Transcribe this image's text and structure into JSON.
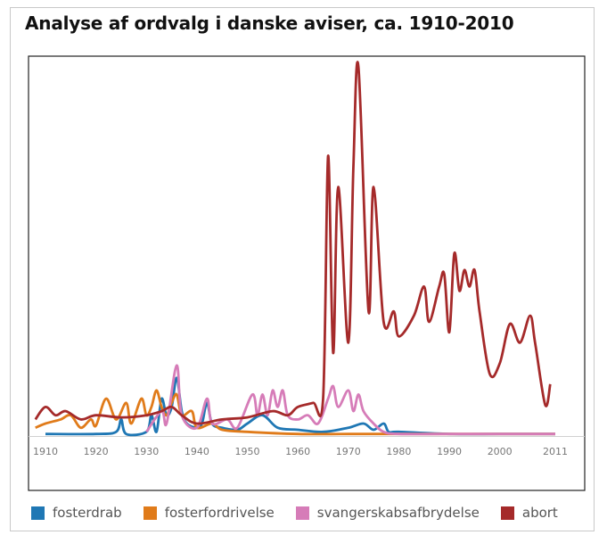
{
  "title": "Analyse af ordvalg i danske aviser, ca. 1910-2010",
  "chart_data": {
    "type": "line",
    "title": "Analyse af ordvalg i danske aviser, ca. 1910-2010",
    "xlabel": "",
    "ylabel": "",
    "x_ticks": [
      1910,
      1920,
      1930,
      1940,
      1950,
      1960,
      1970,
      1980,
      1990,
      2000,
      2011
    ],
    "xlim": [
      1910,
      2011
    ],
    "legend_position": "bottom",
    "grid": false,
    "series": [
      {
        "name": "fosterdrab",
        "color": "#1f77b4",
        "points": [
          [
            1910,
            1
          ],
          [
            1920,
            1
          ],
          [
            1924,
            2
          ],
          [
            1925,
            8
          ],
          [
            1926,
            1
          ],
          [
            1930,
            2
          ],
          [
            1931,
            10
          ],
          [
            1932,
            2
          ],
          [
            1933,
            18
          ],
          [
            1934,
            10
          ],
          [
            1935,
            14
          ],
          [
            1936,
            28
          ],
          [
            1937,
            12
          ],
          [
            1938,
            6
          ],
          [
            1940,
            4
          ],
          [
            1941,
            6
          ],
          [
            1942,
            16
          ],
          [
            1943,
            6
          ],
          [
            1945,
            4
          ],
          [
            1948,
            3
          ],
          [
            1950,
            6
          ],
          [
            1953,
            10
          ],
          [
            1956,
            4
          ],
          [
            1960,
            3
          ],
          [
            1965,
            2
          ],
          [
            1970,
            4
          ],
          [
            1973,
            6
          ],
          [
            1975,
            3
          ],
          [
            1977,
            6
          ],
          [
            1978,
            2
          ],
          [
            1980,
            2
          ],
          [
            1990,
            1
          ],
          [
            2000,
            1
          ],
          [
            2011,
            1
          ]
        ]
      },
      {
        "name": "fosterfordrivelse",
        "color": "#e07b1a",
        "points": [
          [
            1908,
            4
          ],
          [
            1910,
            6
          ],
          [
            1913,
            8
          ],
          [
            1915,
            10
          ],
          [
            1917,
            4
          ],
          [
            1919,
            8
          ],
          [
            1920,
            5
          ],
          [
            1922,
            18
          ],
          [
            1924,
            8
          ],
          [
            1926,
            16
          ],
          [
            1927,
            6
          ],
          [
            1929,
            18
          ],
          [
            1930,
            10
          ],
          [
            1931,
            14
          ],
          [
            1932,
            22
          ],
          [
            1933,
            14
          ],
          [
            1934,
            10
          ],
          [
            1935,
            16
          ],
          [
            1936,
            20
          ],
          [
            1937,
            10
          ],
          [
            1939,
            12
          ],
          [
            1940,
            4
          ],
          [
            1943,
            6
          ],
          [
            1945,
            3
          ],
          [
            1950,
            2
          ],
          [
            1960,
            1
          ],
          [
            1970,
            1
          ],
          [
            1980,
            1
          ],
          [
            2011,
            1
          ]
        ]
      },
      {
        "name": "svangerskabsafbrydelse",
        "color": "#d67cb8",
        "points": [
          [
            1930,
            2
          ],
          [
            1933,
            12
          ],
          [
            1934,
            6
          ],
          [
            1936,
            34
          ],
          [
            1937,
            10
          ],
          [
            1940,
            4
          ],
          [
            1942,
            18
          ],
          [
            1943,
            6
          ],
          [
            1946,
            8
          ],
          [
            1948,
            4
          ],
          [
            1951,
            20
          ],
          [
            1952,
            10
          ],
          [
            1953,
            20
          ],
          [
            1954,
            10
          ],
          [
            1955,
            22
          ],
          [
            1956,
            14
          ],
          [
            1957,
            22
          ],
          [
            1958,
            10
          ],
          [
            1960,
            8
          ],
          [
            1962,
            10
          ],
          [
            1964,
            6
          ],
          [
            1966,
            18
          ],
          [
            1967,
            24
          ],
          [
            1968,
            14
          ],
          [
            1970,
            22
          ],
          [
            1971,
            12
          ],
          [
            1972,
            20
          ],
          [
            1973,
            12
          ],
          [
            1975,
            6
          ],
          [
            1977,
            2
          ],
          [
            1980,
            1
          ],
          [
            1990,
            1
          ],
          [
            2000,
            1
          ],
          [
            2011,
            1
          ]
        ]
      },
      {
        "name": "abort",
        "color": "#a52a2a",
        "points": [
          [
            1908,
            8
          ],
          [
            1910,
            14
          ],
          [
            1912,
            10
          ],
          [
            1914,
            12
          ],
          [
            1917,
            8
          ],
          [
            1920,
            10
          ],
          [
            1925,
            9
          ],
          [
            1930,
            10
          ],
          [
            1933,
            12
          ],
          [
            1935,
            14
          ],
          [
            1937,
            10
          ],
          [
            1940,
            6
          ],
          [
            1945,
            8
          ],
          [
            1950,
            9
          ],
          [
            1955,
            12
          ],
          [
            1958,
            10
          ],
          [
            1960,
            14
          ],
          [
            1963,
            16
          ],
          [
            1965,
            18
          ],
          [
            1966,
            135
          ],
          [
            1967,
            40
          ],
          [
            1968,
            120
          ],
          [
            1970,
            45
          ],
          [
            1971,
            130
          ],
          [
            1972,
            178
          ],
          [
            1974,
            60
          ],
          [
            1975,
            120
          ],
          [
            1977,
            55
          ],
          [
            1979,
            60
          ],
          [
            1980,
            48
          ],
          [
            1983,
            58
          ],
          [
            1985,
            72
          ],
          [
            1986,
            55
          ],
          [
            1988,
            72
          ],
          [
            1989,
            78
          ],
          [
            1990,
            50
          ],
          [
            1991,
            88
          ],
          [
            1992,
            70
          ],
          [
            1993,
            80
          ],
          [
            1994,
            72
          ],
          [
            1995,
            80
          ],
          [
            1996,
            60
          ],
          [
            1998,
            30
          ],
          [
            2000,
            35
          ],
          [
            2002,
            54
          ],
          [
            2004,
            45
          ],
          [
            2006,
            58
          ],
          [
            2007,
            45
          ],
          [
            2009,
            15
          ],
          [
            2010,
            25
          ]
        ]
      }
    ]
  }
}
